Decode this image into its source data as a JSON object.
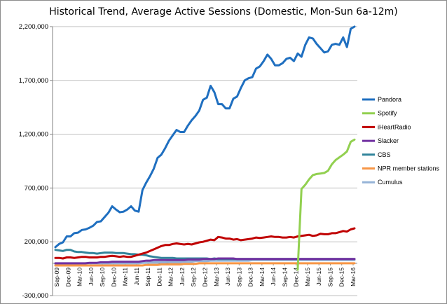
{
  "chart_data": {
    "type": "line",
    "title": "Historical Trend, Average Active Sessions (Domestic, Mon-Sun 6a-12m)",
    "xlabel": "",
    "ylabel": "",
    "ylim": [
      -300000,
      2200000
    ],
    "yticks": [
      -300000,
      200000,
      700000,
      1200000,
      1700000,
      2200000
    ],
    "ytick_labels": [
      "-300,000",
      "200,000",
      "700,000",
      "1,200,000",
      "1,700,000",
      "2,200,000"
    ],
    "xtick_labels": [
      "Sep-09",
      "Dec-09",
      "Mar-10",
      "Jun-10",
      "Sep-10",
      "Dec-10",
      "Mar-11",
      "Jun-11",
      "Sep-11",
      "Dec-11",
      "Mar-12",
      "Jun-12",
      "Sep-12",
      "Dec-12",
      "Mar-13",
      "Jun-13",
      "Sep-13",
      "Dec-13",
      "Mar-14",
      "Jun-14",
      "Sep-14",
      "Dec-14",
      "Mar-15",
      "Jun-15",
      "Sep-15",
      "Dec-15",
      "Mar-16"
    ],
    "grid": {
      "horizontal": true,
      "vertical": false
    },
    "legend_position": "right",
    "series": [
      {
        "name": "Pandora",
        "color": "#1f6fc0",
        "values": [
          150000,
          180000,
          195000,
          250000,
          250000,
          280000,
          285000,
          310000,
          315000,
          330000,
          350000,
          385000,
          390000,
          430000,
          470000,
          530000,
          500000,
          475000,
          480000,
          500000,
          530000,
          490000,
          480000,
          680000,
          750000,
          810000,
          880000,
          980000,
          1010000,
          1070000,
          1140000,
          1190000,
          1240000,
          1220000,
          1220000,
          1280000,
          1330000,
          1370000,
          1420000,
          1520000,
          1540000,
          1650000,
          1590000,
          1480000,
          1480000,
          1440000,
          1440000,
          1530000,
          1550000,
          1630000,
          1700000,
          1720000,
          1730000,
          1810000,
          1830000,
          1880000,
          1940000,
          1900000,
          1840000,
          1840000,
          1860000,
          1900000,
          1910000,
          1880000,
          1950000,
          1920000,
          2030000,
          2100000,
          2090000,
          2040000,
          2000000,
          1960000,
          1970000,
          2030000,
          2040000,
          2030000,
          2100000,
          2010000,
          2180000,
          2200000
        ]
      },
      {
        "name": "Spotify",
        "color": "#92d050",
        "values": [
          null,
          null,
          null,
          null,
          null,
          null,
          null,
          null,
          null,
          null,
          null,
          null,
          null,
          null,
          null,
          null,
          null,
          null,
          null,
          null,
          null,
          null,
          null,
          null,
          null,
          null,
          null,
          null,
          null,
          null,
          null,
          null,
          null,
          null,
          null,
          null,
          null,
          null,
          null,
          null,
          null,
          null,
          null,
          null,
          null,
          null,
          null,
          null,
          null,
          null,
          null,
          null,
          null,
          null,
          null,
          null,
          null,
          null,
          null,
          null,
          null,
          null,
          null,
          null,
          -60000,
          690000,
          730000,
          780000,
          820000,
          830000,
          835000,
          840000,
          860000,
          920000,
          960000,
          985000,
          1010000,
          1040000,
          1130000,
          1150000
        ]
      },
      {
        "name": "iHeartRadio",
        "color": "#c00000",
        "values": [
          50000,
          50000,
          45000,
          55000,
          55000,
          50000,
          55000,
          60000,
          60000,
          55000,
          55000,
          55000,
          60000,
          60000,
          65000,
          70000,
          65000,
          60000,
          65000,
          60000,
          60000,
          70000,
          80000,
          90000,
          100000,
          115000,
          130000,
          145000,
          160000,
          170000,
          170000,
          180000,
          185000,
          180000,
          175000,
          180000,
          175000,
          185000,
          195000,
          200000,
          210000,
          220000,
          215000,
          245000,
          240000,
          230000,
          230000,
          220000,
          225000,
          215000,
          220000,
          225000,
          230000,
          240000,
          235000,
          240000,
          245000,
          250000,
          245000,
          245000,
          240000,
          240000,
          245000,
          240000,
          250000,
          255000,
          260000,
          265000,
          255000,
          260000,
          275000,
          270000,
          270000,
          280000,
          280000,
          290000,
          300000,
          295000,
          315000,
          325000
        ]
      },
      {
        "name": "Slacker",
        "color": "#7030a0",
        "values": [
          0,
          0,
          0,
          0,
          0,
          0,
          0,
          0,
          0,
          5000,
          5000,
          5000,
          10000,
          10000,
          10000,
          15000,
          15000,
          15000,
          15000,
          15000,
          15000,
          15000,
          15000,
          20000,
          25000,
          25000,
          30000,
          30000,
          30000,
          30000,
          30000,
          30000,
          30000,
          30000,
          30000,
          35000,
          35000,
          35000,
          35000,
          40000,
          40000,
          40000,
          40000,
          45000,
          45000,
          45000,
          45000,
          45000,
          40000,
          40000,
          40000,
          40000,
          40000,
          40000,
          40000,
          40000,
          40000,
          40000,
          40000,
          40000,
          40000,
          40000,
          40000,
          40000,
          40000,
          40000,
          40000,
          40000,
          40000,
          40000,
          40000,
          40000,
          40000,
          40000,
          40000,
          40000,
          40000,
          40000,
          40000,
          40000
        ]
      },
      {
        "name": "CBS",
        "color": "#31849b",
        "values": [
          125000,
          120000,
          115000,
          125000,
          125000,
          110000,
          105000,
          105000,
          100000,
          95000,
          95000,
          90000,
          95000,
          100000,
          100000,
          100000,
          95000,
          95000,
          95000,
          90000,
          85000,
          85000,
          80000,
          80000,
          75000,
          65000,
          60000,
          55000,
          50000,
          50000,
          50000,
          50000,
          45000,
          45000,
          45000,
          45000,
          45000,
          45000,
          45000,
          45000,
          45000,
          40000,
          45000,
          40000,
          40000,
          40000,
          40000,
          40000,
          40000,
          40000,
          40000,
          40000,
          40000,
          40000,
          40000,
          40000,
          40000,
          40000,
          40000,
          40000,
          40000,
          40000,
          40000,
          40000,
          40000,
          40000,
          40000,
          40000,
          40000,
          40000,
          40000,
          40000,
          40000,
          40000,
          40000,
          40000,
          40000,
          40000,
          40000,
          40000
        ]
      },
      {
        "name": "NPR member stations",
        "color": "#f79646",
        "values": [
          -20000,
          -20000,
          -20000,
          -20000,
          -20000,
          -20000,
          -20000,
          -20000,
          -20000,
          -20000,
          -20000,
          -20000,
          -20000,
          -20000,
          -20000,
          -20000,
          -20000,
          -20000,
          -20000,
          -20000,
          -20000,
          -20000,
          -20000,
          -20000,
          -15000,
          -15000,
          -15000,
          -15000,
          -10000,
          -10000,
          -10000,
          -10000,
          -10000,
          -10000,
          -5000,
          -5000,
          -5000,
          -5000,
          0,
          0,
          0,
          0,
          0,
          0,
          0,
          0,
          0,
          0,
          0,
          0,
          0,
          0,
          0,
          0,
          0,
          0,
          0,
          0,
          0,
          0,
          0,
          0,
          0,
          0,
          0,
          0,
          0,
          0,
          0,
          0,
          0,
          0,
          0,
          0,
          0,
          0,
          0,
          0,
          0,
          0
        ]
      },
      {
        "name": "Cumulus",
        "color": "#95b3d7",
        "values": [
          -5000,
          -5000,
          -5000,
          -5000,
          -5000,
          -5000,
          -5000,
          -5000,
          0,
          0,
          0,
          0,
          0,
          0,
          0,
          0,
          0,
          0,
          0,
          0,
          0,
          0,
          0,
          5000,
          5000,
          10000,
          10000,
          10000,
          10000,
          10000,
          15000,
          15000,
          15000,
          15000,
          15000,
          15000,
          15000,
          20000,
          20000,
          20000,
          20000,
          25000,
          25000,
          25000,
          25000,
          25000,
          25000,
          25000,
          25000,
          25000,
          25000,
          25000,
          30000,
          30000,
          30000,
          30000,
          30000,
          30000,
          30000,
          30000,
          30000,
          30000,
          30000,
          30000,
          30000,
          30000,
          30000,
          30000,
          30000,
          30000,
          30000,
          30000,
          30000,
          30000,
          30000,
          30000,
          30000,
          30000,
          30000,
          30000
        ]
      }
    ]
  }
}
